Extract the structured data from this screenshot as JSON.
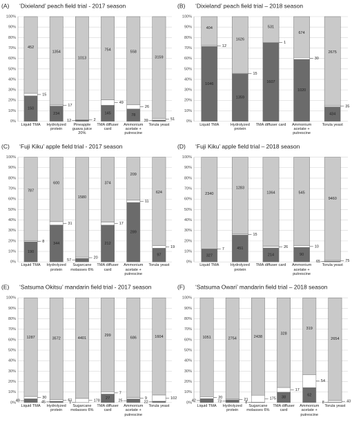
{
  "chart_data": [
    {
      "type": "stacked100",
      "label": "(A)",
      "title": "‘Dixieland’ peach field trial - 2017 season",
      "categories": [
        "Liquid TMA",
        "Hydrolyzed protein",
        "Pineapple guava juice 20%",
        "TMA diffuser card",
        "Ammonium acetate + putrescine",
        "Torula yeast"
      ],
      "series": [
        {
          "color": "#6b6b6b",
          "values": [
            150,
            234,
            12,
            145,
            78,
            39
          ]
        },
        {
          "color": "#ffffff",
          "values": [
            15,
            17,
            2,
            49,
            26,
            51
          ]
        },
        {
          "color": "#c9c9c9",
          "values": [
            452,
            1354,
            1013,
            754,
            558,
            3159
          ]
        }
      ],
      "ylim": [
        0,
        100
      ],
      "grid": true,
      "yticks": [
        {
          "value": 0,
          "label": "0%"
        },
        {
          "value": 10,
          "label": "10%"
        },
        {
          "value": 20,
          "label": "20%"
        },
        {
          "value": 30,
          "label": "30%"
        },
        {
          "value": 40,
          "label": "40%"
        },
        {
          "value": 50,
          "label": "50%"
        },
        {
          "value": 60,
          "label": "60%"
        },
        {
          "value": 70,
          "label": "70%"
        },
        {
          "value": 80,
          "label": "80%"
        },
        {
          "value": 90,
          "label": "90%"
        },
        {
          "value": 100,
          "label": "100%"
        }
      ]
    },
    {
      "type": "stacked100",
      "label": "(B)",
      "title": "‘Dixieland’ peach field trial – 2018 season",
      "categories": [
        "Liquid TMA",
        "Hydrolyzed protein",
        "TMA diffuser card",
        "Ammonium acetate + putrescine",
        "Torula yeast"
      ],
      "series": [
        {
          "color": "#6b6b6b",
          "values": [
            1046,
            1359,
            1607,
            1020,
            434
          ]
        },
        {
          "color": "#ffffff",
          "values": [
            12,
            15,
            1,
            30,
            35
          ]
        },
        {
          "color": "#c9c9c9",
          "values": [
            404,
            1626,
            531,
            674,
            2675
          ]
        }
      ],
      "ylim": [
        0,
        100
      ],
      "grid": true,
      "yticks": [
        {
          "value": 0,
          "label": "0%"
        },
        {
          "value": 10,
          "label": "10%"
        },
        {
          "value": 20,
          "label": "20%"
        },
        {
          "value": 30,
          "label": "30%"
        },
        {
          "value": 40,
          "label": "40%"
        },
        {
          "value": 50,
          "label": "50%"
        },
        {
          "value": 60,
          "label": "60%"
        },
        {
          "value": 70,
          "label": "70%"
        },
        {
          "value": 80,
          "label": "80%"
        },
        {
          "value": 90,
          "label": "90%"
        },
        {
          "value": 100,
          "label": "100%"
        }
      ]
    },
    {
      "type": "stacked100",
      "label": "(C)",
      "title": "‘Fuji Kiku’ apple field trial - 2017 season",
      "categories": [
        "Liquid TMA",
        "Hydrolyzed protein",
        "Sugarcane molasses 6%",
        "TMA diffuser card",
        "Ammonium acetate + putrescine",
        "Torula yeast"
      ],
      "series": [
        {
          "color": "#6b6b6b",
          "values": [
            190,
            344,
            57,
            212,
            289,
            97
          ]
        },
        {
          "color": "#ffffff",
          "values": [
            8,
            31,
            20,
            17,
            11,
            19
          ]
        },
        {
          "color": "#c9c9c9",
          "values": [
            787,
            600,
            1580,
            374,
            209,
            624
          ]
        }
      ],
      "ylim": [
        0,
        100
      ],
      "grid": true,
      "yticks": [
        {
          "value": 0,
          "label": "0%"
        },
        {
          "value": 10,
          "label": "10%"
        },
        {
          "value": 20,
          "label": "20%"
        },
        {
          "value": 30,
          "label": "30%"
        },
        {
          "value": 40,
          "label": "40%"
        },
        {
          "value": 50,
          "label": "50%"
        },
        {
          "value": 60,
          "label": "60%"
        },
        {
          "value": 70,
          "label": "70%"
        },
        {
          "value": 80,
          "label": "80%"
        },
        {
          "value": 90,
          "label": "90%"
        },
        {
          "value": 100,
          "label": "100%"
        }
      ]
    },
    {
      "type": "stacked100",
      "label": "(D)",
      "title": "‘Fuji Kiku’ apple field trial – 2018 season",
      "categories": [
        "Liquid TMA",
        "Hydrolyzed protein",
        "TMA diffuser card",
        "Ammonium acetate + putrescine",
        "Torula yeast"
      ],
      "series": [
        {
          "color": "#6b6b6b",
          "values": [
            327,
            451,
            214,
            90,
            65
          ]
        },
        {
          "color": "#ffffff",
          "values": [
            7,
            15,
            26,
            10,
            75
          ]
        },
        {
          "color": "#c9c9c9",
          "values": [
            2340,
            1283,
            1364,
            545,
            9460
          ]
        }
      ],
      "ylim": [
        0,
        100
      ],
      "grid": true,
      "yticks": [
        {
          "value": 0,
          "label": "0%"
        },
        {
          "value": 10,
          "label": "10%"
        },
        {
          "value": 20,
          "label": "20%"
        },
        {
          "value": 30,
          "label": "30%"
        },
        {
          "value": 40,
          "label": "40%"
        },
        {
          "value": 50,
          "label": "50%"
        },
        {
          "value": 60,
          "label": "60%"
        },
        {
          "value": 70,
          "label": "70%"
        },
        {
          "value": 80,
          "label": "80%"
        },
        {
          "value": 90,
          "label": "90%"
        },
        {
          "value": 100,
          "label": "100%"
        }
      ]
    },
    {
      "type": "stacked100",
      "label": "(E)",
      "title": "‘Satsuma Okitsu’ mandarin field trial - 2017 season",
      "categories": [
        "Liquid TMA",
        "Hydrolyzed protein",
        "Sugarcane molasses 6%",
        "TMA diffuser card",
        "Ammonium acetate + putrescine",
        "Torula yeast"
      ],
      "series": [
        {
          "color": "#6b6b6b",
          "values": [
            49,
            45,
            1,
            27,
            25,
            22
          ]
        },
        {
          "color": "#ffffff",
          "values": [
            30,
            61,
            178,
            7,
            9,
            102
          ]
        },
        {
          "color": "#c9c9c9",
          "values": [
            1287,
            3572,
            4401,
            299,
            686,
            1604
          ]
        }
      ],
      "ylim": [
        0,
        100
      ],
      "grid": true,
      "yticks": [
        {
          "value": 0,
          "label": "0%"
        },
        {
          "value": 10,
          "label": "10%"
        },
        {
          "value": 20,
          "label": "20%"
        },
        {
          "value": 30,
          "label": "30%"
        },
        {
          "value": 40,
          "label": "40%"
        },
        {
          "value": 50,
          "label": "50%"
        },
        {
          "value": 60,
          "label": "60%"
        },
        {
          "value": 70,
          "label": "70%"
        },
        {
          "value": 80,
          "label": "80%"
        },
        {
          "value": 90,
          "label": "90%"
        },
        {
          "value": 100,
          "label": "100%"
        }
      ]
    },
    {
      "type": "stacked100",
      "label": "(F)",
      "title": "‘Satsuma Owari’ mandarin field trial – 2018 season",
      "categories": [
        "Liquid TMA",
        "Hydrolyzed protein",
        "Sugarcane molasses 6%",
        "TMA diffuser card",
        "Ammonium acetate + putrescine",
        "Torula yeast"
      ],
      "series": [
        {
          "color": "#6b6b6b",
          "values": [
            42,
            73,
            8,
            38,
            62,
            8
          ]
        },
        {
          "color": "#ffffff",
          "values": [
            20,
            21,
            175,
            17,
            54,
            43
          ]
        },
        {
          "color": "#c9c9c9",
          "values": [
            1051,
            2754,
            2438,
            328,
            319,
            2654
          ]
        }
      ],
      "ylim": [
        0,
        100
      ],
      "grid": true,
      "yticks": [
        {
          "value": 0,
          "label": "0%"
        },
        {
          "value": 10,
          "label": "10%"
        },
        {
          "value": 20,
          "label": "20%"
        },
        {
          "value": 30,
          "label": "30%"
        },
        {
          "value": 40,
          "label": "40%"
        },
        {
          "value": 50,
          "label": "50%"
        },
        {
          "value": 60,
          "label": "60%"
        },
        {
          "value": 70,
          "label": "70%"
        },
        {
          "value": 80,
          "label": "80%"
        },
        {
          "value": 90,
          "label": "90%"
        },
        {
          "value": 100,
          "label": "100%"
        }
      ]
    }
  ]
}
